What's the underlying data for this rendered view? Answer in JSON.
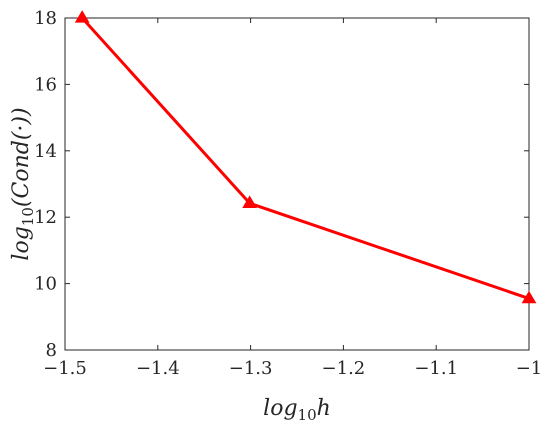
{
  "chart_data": {
    "type": "line",
    "title": "",
    "xlabel": {
      "base": "log",
      "sub": "10",
      "rest": "h"
    },
    "ylabel": {
      "base": "log",
      "sub": "10",
      "rest": "(Cond(·))"
    },
    "xlim": [
      -1.5,
      -1.0
    ],
    "ylim": [
      8,
      18
    ],
    "xticks": [
      -1.5,
      -1.4,
      -1.3,
      -1.2,
      -1.1,
      -1.0
    ],
    "xtick_labels": [
      "−1.5",
      "−1.4",
      "−1.3",
      "−1.2",
      "−1.1",
      "−1"
    ],
    "yticks": [
      8,
      10,
      12,
      14,
      16,
      18
    ],
    "ytick_labels": [
      "8",
      "10",
      "12",
      "14",
      "16",
      "18"
    ],
    "grid": false,
    "legend": "none",
    "series": [
      {
        "color": "#ff0000",
        "marker": "triangle",
        "x": [
          -1.4815,
          -1.301,
          -1.0
        ],
        "y": [
          18.0,
          12.42,
          9.55
        ]
      }
    ]
  }
}
